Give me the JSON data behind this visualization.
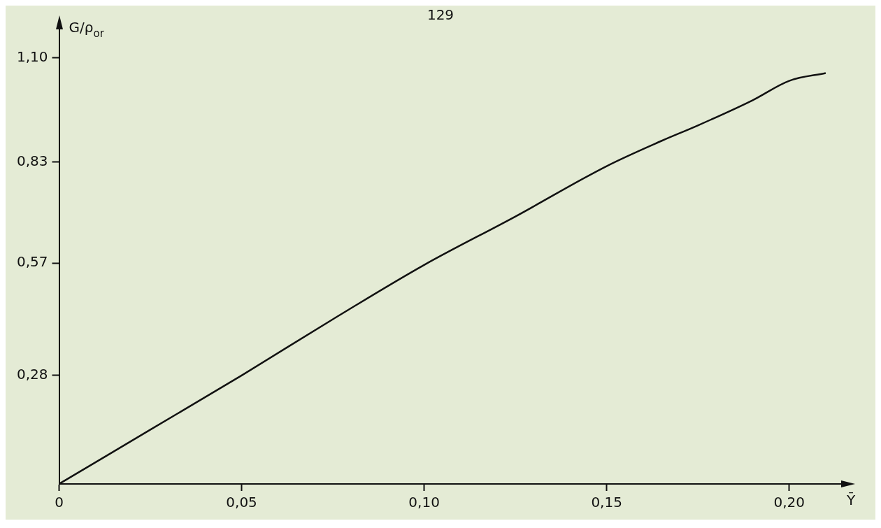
{
  "chart_data": {
    "type": "line",
    "xlabel": "Ȳ",
    "ylabel": "G/ρ$_{or}$",
    "annotations": [
      "129"
    ],
    "x": [
      0,
      0.025,
      0.05,
      0.075,
      0.1,
      0.125,
      0.15,
      0.165,
      0.175,
      0.19,
      0.2,
      0.21
    ],
    "series": [
      {
        "color": "#111111",
        "values": [
          0,
          0.14,
          0.28,
          0.425,
          0.565,
          0.69,
          0.82,
          0.885,
          0.925,
          0.99,
          1.04,
          1.06
        ]
      }
    ],
    "xlim": [
      0,
      0.215
    ],
    "ylim": [
      0,
      1.18
    ],
    "xticks": [
      {
        "value": 0,
        "label": "0"
      },
      {
        "value": 0.05,
        "label": "0,05"
      },
      {
        "value": 0.1,
        "label": "0,10"
      },
      {
        "value": 0.15,
        "label": "0,15"
      },
      {
        "value": 0.2,
        "label": "0,20"
      }
    ],
    "yticks": [
      {
        "value": 0.28,
        "label": "0,28"
      },
      {
        "value": 0.57,
        "label": "0,57"
      },
      {
        "value": 0.83,
        "label": "0,83"
      },
      {
        "value": 1.1,
        "label": "1,10"
      }
    ],
    "marker": "none",
    "line_style": "solid",
    "legend": false,
    "grid": false
  }
}
